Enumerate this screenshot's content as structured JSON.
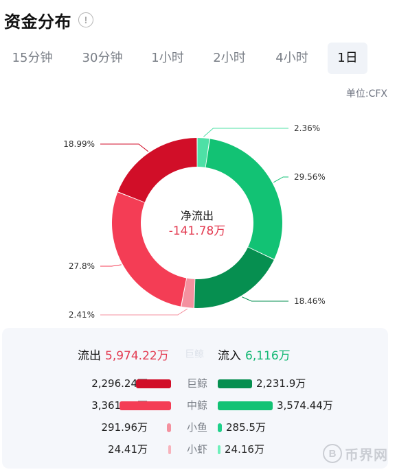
{
  "header": {
    "title": "资金分布",
    "info_icon": "info-circle-icon"
  },
  "tabs": [
    {
      "label": "15分钟",
      "active": false
    },
    {
      "label": "30分钟",
      "active": false
    },
    {
      "label": "1小时",
      "active": false
    },
    {
      "label": "2小时",
      "active": false
    },
    {
      "label": "4小时",
      "active": false
    },
    {
      "label": "1日",
      "active": true
    }
  ],
  "unit": "单位:CFX",
  "chart_data": {
    "type": "pie",
    "center_label": "净流出",
    "center_value": "-141.78万",
    "slices": [
      {
        "label": "2.36%",
        "value": 2.36,
        "color": "#4ee0a6"
      },
      {
        "label": "29.56%",
        "value": 29.56,
        "color": "#12c274"
      },
      {
        "label": "18.46%",
        "value": 18.46,
        "color": "#068f50"
      },
      {
        "label": "2.41%",
        "value": 2.41,
        "color": "#f4919f"
      },
      {
        "label": "27.8%",
        "value": 27.8,
        "color": "#f43d55"
      },
      {
        "label": "18.99%",
        "value": 18.99,
        "color": "#d10e28"
      }
    ]
  },
  "summary": {
    "out_label": "流出",
    "out_value": "5,974.22万",
    "middle_ghost": "巨鲸",
    "in_label": "流入",
    "in_value": "6,116万"
  },
  "rows": [
    {
      "category": "巨鲸",
      "out_value": "2,296.24万",
      "in_value": "2,231.9万",
      "out_color": "#d10e28",
      "in_color": "#068f50",
      "out_fraction": 0.64,
      "in_fraction": 0.62
    },
    {
      "category": "中鲸",
      "out_value": "3,361.61万",
      "in_value": "3,574.44万",
      "out_color": "#f43d55",
      "in_color": "#12c274",
      "out_fraction": 0.94,
      "in_fraction": 1.0
    },
    {
      "category": "小鱼",
      "out_value": "291.96万",
      "in_value": "285.5万",
      "out_color": "#f4919f",
      "in_color": "#1fd08a",
      "out_fraction": 0.08,
      "in_fraction": 0.08
    },
    {
      "category": "小虾",
      "out_value": "24.41万",
      "in_value": "24.16万",
      "out_color": "#f8b3bc",
      "in_color": "#6ff0bb",
      "out_fraction": 0.007,
      "in_fraction": 0.007
    }
  ],
  "watermark": {
    "coin_glyph": "B",
    "text": "币界网"
  }
}
